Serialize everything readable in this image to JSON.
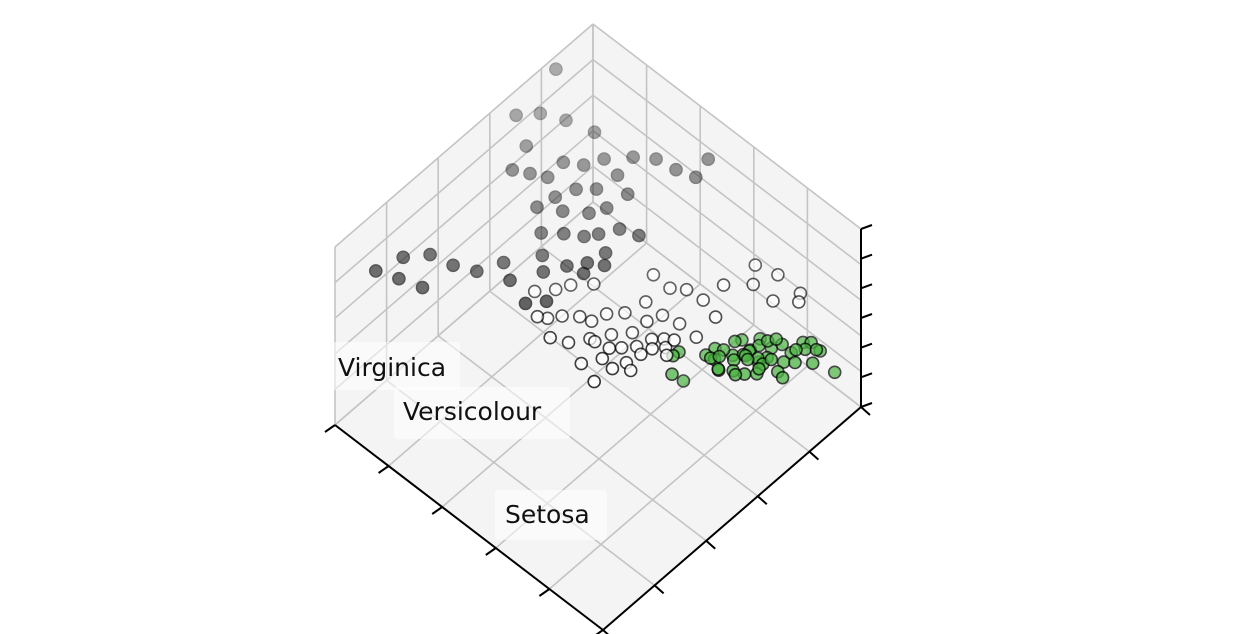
{
  "chart_data": {
    "type": "scatter",
    "projection": "3d",
    "title": "",
    "xlabel": "",
    "ylabel": "",
    "zlabel": "",
    "tick_labels_visible": false,
    "grid": true,
    "colors": {
      "setosa": "#4bb543",
      "versicolour": "#ffffff",
      "virginica": "#222222",
      "edge": "#000000"
    },
    "annotations": [
      {
        "name": "label-virginica",
        "text": "Virginica"
      },
      {
        "name": "label-versicolour",
        "text": "Versicolour"
      },
      {
        "name": "label-setosa",
        "text": "Setosa"
      }
    ],
    "series": [
      {
        "name": "Setosa",
        "points": [
          [
            -0.05,
            1.05,
            0.05
          ],
          [
            0.05,
            1.0,
            0.15
          ],
          [
            0.0,
            1.1,
            0.1
          ],
          [
            0.1,
            1.15,
            0.0
          ],
          [
            -0.1,
            1.2,
            -0.05
          ],
          [
            0.15,
            0.95,
            0.2
          ],
          [
            0.0,
            1.25,
            0.05
          ],
          [
            -0.05,
            0.9,
            0.1
          ],
          [
            0.2,
            1.05,
            -0.1
          ],
          [
            0.1,
            1.3,
            0.15
          ],
          [
            -0.15,
            1.0,
            0.25
          ],
          [
            0.05,
            1.2,
            -0.15
          ],
          [
            0.25,
            1.1,
            0.05
          ],
          [
            -0.1,
            1.35,
            0.0
          ],
          [
            0.15,
            1.25,
            -0.05
          ],
          [
            0.3,
            1.0,
            0.1
          ],
          [
            0.0,
            0.85,
            0.0
          ],
          [
            -0.2,
            1.15,
            0.1
          ],
          [
            0.2,
            1.35,
            0.2
          ],
          [
            0.05,
            1.4,
            -0.1
          ],
          [
            0.35,
            1.15,
            0.15
          ],
          [
            0.4,
            1.3,
            0.0
          ],
          [
            0.45,
            1.45,
            0.1
          ],
          [
            0.5,
            1.55,
            0.05
          ],
          [
            0.55,
            1.6,
            0.15
          ],
          [
            0.6,
            1.7,
            -0.05
          ],
          [
            0.65,
            1.6,
            0.1
          ],
          [
            0.7,
            1.5,
            0.0
          ],
          [
            0.3,
            1.5,
            -0.1
          ],
          [
            0.25,
            1.4,
            0.1
          ],
          [
            0.55,
            1.35,
            0.05
          ],
          [
            0.5,
            1.2,
            -0.1
          ],
          [
            -0.25,
            1.05,
            -0.1
          ],
          [
            -0.3,
            0.95,
            0.05
          ],
          [
            -0.2,
            0.8,
            0.15
          ],
          [
            -0.35,
            0.85,
            -0.05
          ],
          [
            -0.15,
            0.75,
            0.0
          ],
          [
            -0.1,
            0.7,
            0.1
          ],
          [
            -0.4,
            0.9,
            0.05
          ],
          [
            -0.3,
            0.75,
            0.1
          ],
          [
            0.1,
            0.8,
            0.05
          ],
          [
            0.15,
            0.9,
            0.0
          ],
          [
            0.35,
            1.25,
            -0.15
          ],
          [
            -0.45,
            0.8,
            0.0
          ],
          [
            -0.65,
            0.55,
            0.15
          ],
          [
            -0.7,
            0.5,
            0.1
          ],
          [
            -0.6,
            0.4,
            -0.05
          ],
          [
            0.75,
            1.8,
            -0.4
          ],
          [
            0.4,
            1.6,
            0.05
          ],
          [
            -0.75,
            0.7,
            -0.55
          ]
        ]
      },
      {
        "name": "Versicolour",
        "points": [
          [
            -1.1,
            0.5,
            0.1
          ],
          [
            -0.9,
            0.55,
            0.05
          ],
          [
            -1.2,
            0.35,
            0.05
          ],
          [
            -1.0,
            0.25,
            0.15
          ],
          [
            -0.8,
            0.6,
            0.2
          ],
          [
            -1.3,
            0.2,
            0.1
          ],
          [
            -0.7,
            0.4,
            0.2
          ],
          [
            -1.15,
            0.15,
            0.0
          ],
          [
            -0.95,
            0.05,
            0.1
          ],
          [
            -1.25,
            0.55,
            0.25
          ],
          [
            -1.4,
            0.45,
            0.05
          ],
          [
            -1.05,
            0.65,
            0.0
          ],
          [
            -0.85,
            0.3,
            0.3
          ],
          [
            -1.35,
            0.05,
            0.2
          ],
          [
            -1.55,
            0.25,
            0.1
          ],
          [
            -1.2,
            0.75,
            0.2
          ],
          [
            -1.0,
            0.85,
            0.1
          ],
          [
            -0.75,
            0.9,
            0.0
          ],
          [
            -1.45,
            0.7,
            0.3
          ],
          [
            -1.6,
            0.5,
            0.2
          ],
          [
            -1.7,
            0.3,
            0.3
          ],
          [
            -1.8,
            0.15,
            0.25
          ],
          [
            -1.5,
            -0.05,
            0.3
          ],
          [
            -1.3,
            -0.1,
            0.2
          ],
          [
            -1.05,
            -0.15,
            0.25
          ],
          [
            -1.65,
            0.0,
            0.2
          ],
          [
            -1.9,
            0.05,
            0.35
          ],
          [
            -2.05,
            -0.1,
            0.4
          ],
          [
            -2.2,
            -0.2,
            0.35
          ],
          [
            -1.75,
            -0.25,
            0.3
          ],
          [
            -1.45,
            -0.3,
            0.2
          ],
          [
            -1.15,
            -0.35,
            0.15
          ],
          [
            -0.6,
            1.2,
            0.7
          ],
          [
            -0.35,
            1.45,
            0.65
          ],
          [
            -0.25,
            1.75,
            0.6
          ],
          [
            -0.55,
            1.65,
            0.65
          ],
          [
            0.05,
            1.85,
            0.4
          ],
          [
            0.2,
            1.7,
            0.5
          ],
          [
            -0.1,
            1.55,
            0.45
          ],
          [
            -0.45,
            0.95,
            0.5
          ],
          [
            -0.8,
            1.05,
            0.45
          ],
          [
            -1.05,
            1.0,
            0.5
          ],
          [
            -1.3,
            0.95,
            0.4
          ],
          [
            -1.55,
            0.9,
            0.5
          ],
          [
            -2.0,
            0.35,
            0.55
          ],
          [
            -2.25,
            0.2,
            0.5
          ],
          [
            -2.35,
            0.05,
            0.5
          ],
          [
            -2.5,
            -0.15,
            0.55
          ],
          [
            -2.15,
            -0.4,
            0.6
          ],
          [
            -1.85,
            -0.45,
            0.5
          ]
        ]
      },
      {
        "name": "Virginica",
        "points": [
          [
            -2.1,
            -0.3,
            0.8
          ],
          [
            -2.4,
            -0.1,
            0.9
          ],
          [
            -2.2,
            0.1,
            0.95
          ],
          [
            -2.6,
            0.05,
            0.9
          ],
          [
            -2.0,
            0.25,
            1.0
          ],
          [
            -2.5,
            0.3,
            1.1
          ],
          [
            -2.8,
            0.2,
            1.0
          ],
          [
            -2.3,
            0.45,
            1.05
          ],
          [
            -2.7,
            0.45,
            1.2
          ],
          [
            -2.9,
            0.5,
            1.25
          ],
          [
            -2.45,
            0.65,
            1.15
          ],
          [
            -3.0,
            0.3,
            1.2
          ],
          [
            -2.75,
            0.7,
            1.3
          ],
          [
            -2.15,
            0.55,
            1.1
          ],
          [
            -1.9,
            0.45,
            1.05
          ],
          [
            -2.55,
            0.85,
            1.3
          ],
          [
            -3.1,
            0.55,
            1.4
          ],
          [
            -2.3,
            0.8,
            1.2
          ],
          [
            -2.0,
            0.75,
            1.1
          ],
          [
            -2.85,
            0.9,
            1.45
          ],
          [
            -3.05,
            0.75,
            1.5
          ],
          [
            -3.25,
            0.4,
            1.5
          ],
          [
            -2.65,
            1.05,
            1.55
          ],
          [
            -3.4,
            0.25,
            1.6
          ],
          [
            -3.5,
            0.55,
            1.65
          ],
          [
            -2.95,
            1.15,
            1.7
          ],
          [
            -3.3,
            1.0,
            1.8
          ],
          [
            -3.6,
            0.85,
            1.85
          ],
          [
            -2.4,
            1.05,
            1.45
          ],
          [
            -2.15,
            1.0,
            1.35
          ],
          [
            -2.35,
            1.25,
            1.6
          ],
          [
            -2.1,
            1.4,
            1.6
          ],
          [
            -3.75,
            0.6,
            1.95
          ],
          [
            -3.85,
            1.3,
            2.0
          ],
          [
            -1.85,
            1.5,
            1.5
          ],
          [
            -1.6,
            1.6,
            1.45
          ],
          [
            -1.55,
            1.75,
            1.65
          ],
          [
            -2.9,
            -0.3,
            0.9
          ],
          [
            -3.1,
            -0.55,
            0.85
          ],
          [
            -3.3,
            -0.75,
            1.0
          ],
          [
            -3.55,
            -0.9,
            1.15
          ],
          [
            -3.45,
            -1.1,
            0.85
          ],
          [
            -3.75,
            -1.15,
            1.2
          ],
          [
            -3.65,
            -1.3,
            1.05
          ],
          [
            -3.9,
            -1.45,
            1.15
          ],
          [
            -1.8,
            0.35,
            1.0
          ],
          [
            -1.95,
            0.15,
            0.95
          ],
          [
            -2.6,
            -0.45,
            0.95
          ],
          [
            -1.7,
            0.8,
            1.15
          ],
          [
            -2.25,
            -0.5,
            0.85
          ]
        ]
      }
    ]
  }
}
